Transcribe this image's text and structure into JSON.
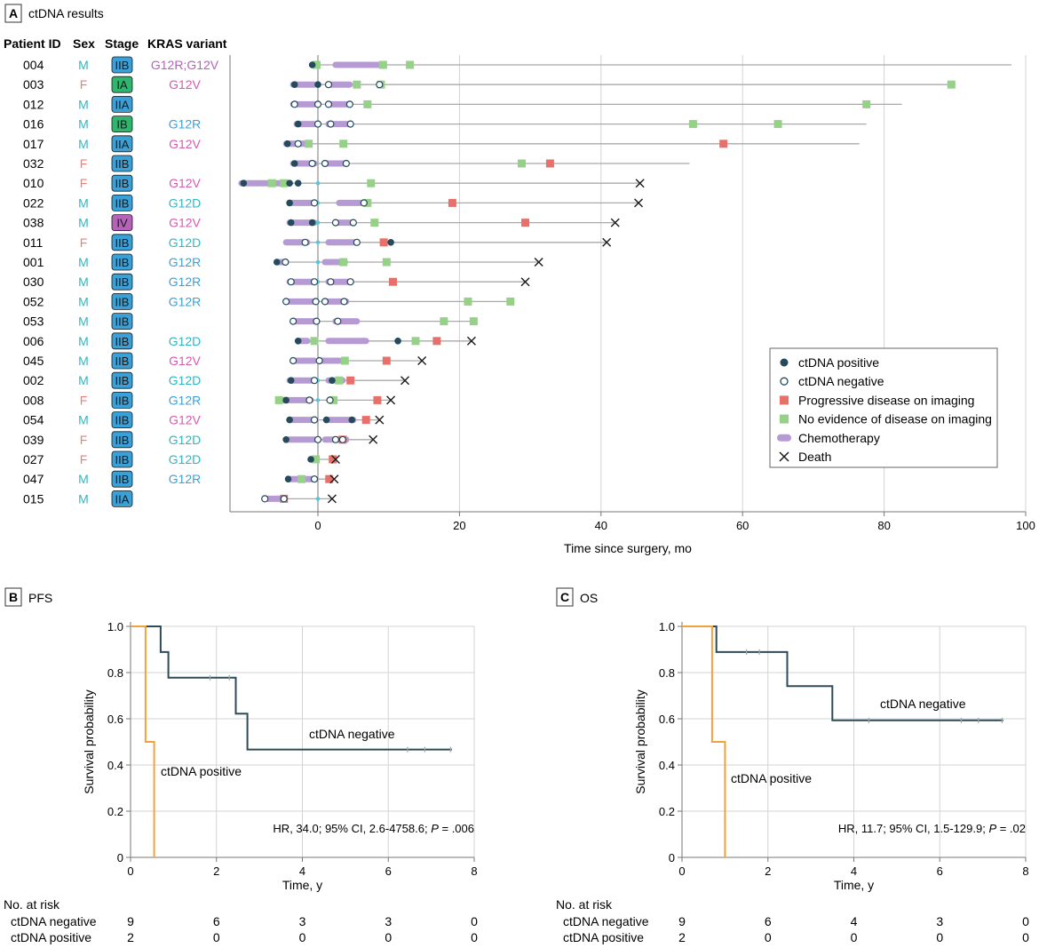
{
  "colors": {
    "pos": "#244a5c",
    "pfs_neg_line": "#2f4b57",
    "pd": "#e8706a",
    "ned": "#95d186",
    "chemo": "#b59ad4",
    "line": "#a9a9a9",
    "grid": "#d3d3d3",
    "orange": "#f2a23b",
    "cyan": "#56c6d9",
    "sexM": "#2fb6c1",
    "sexF": "#ef7e72",
    "stageIIB": "#3aa0d8",
    "stageIIA": "#3aa0d8",
    "stageIA": "#2eb66e",
    "stageIB": "#2eb66e",
    "stageIV": "#b463b8",
    "kras_G12V": "#d65ab0",
    "kras_G12R": "#3aa0d8",
    "kras_G12D": "#2fb6c1",
    "kras_G12R_G12V": "#b463b8"
  },
  "panelA": {
    "letter": "A",
    "title": "ctDNA results",
    "headers": {
      "patient": "Patient ID",
      "sex": "Sex",
      "stage": "Stage",
      "kras": "KRAS variant"
    },
    "xlabel": "Time since surgery, mo",
    "xticks": [
      0,
      20,
      40,
      60,
      80,
      100
    ],
    "xlim": [
      -11,
      100
    ],
    "legend": [
      {
        "key": "pos",
        "label": "ctDNA positive"
      },
      {
        "key": "neg",
        "label": "ctDNA negative"
      },
      {
        "key": "pd",
        "label": "Progressive disease on imaging"
      },
      {
        "key": "ned",
        "label": "No evidence of disease on imaging"
      },
      {
        "key": "chemo",
        "label": "Chemotherapy"
      },
      {
        "key": "death",
        "label": "Death"
      }
    ],
    "patients": [
      {
        "id": "004",
        "sex": "M",
        "stage": "IIB",
        "kras": "G12R;G12V",
        "kras_key": "G12R_G12V",
        "start": -1,
        "end": 98,
        "chemo": [
          [
            2.5,
            9
          ]
        ],
        "pos": [
          -0.8
        ],
        "neg": [],
        "ned": [
          -0.2,
          9.2,
          13
        ],
        "pd": [],
        "death": null
      },
      {
        "id": "003",
        "sex": "F",
        "stage": "IA",
        "kras": "G12V",
        "kras_key": "G12V",
        "start": -3.5,
        "end": 89.5,
        "chemo": [
          [
            -3.5,
            -0.5
          ],
          [
            1.5,
            4.5
          ]
        ],
        "pos": [
          -3.3,
          0
        ],
        "neg": [
          1.5,
          8.7
        ],
        "ned": [
          5.5,
          8.9,
          89.5
        ],
        "pd": [],
        "death": null
      },
      {
        "id": "012",
        "sex": "M",
        "stage": "IIA",
        "kras": "",
        "kras_key": "",
        "start": -3.5,
        "end": 82.5,
        "chemo": [
          [
            -3.5,
            -0.5
          ],
          [
            1.5,
            4.5
          ]
        ],
        "pos": [],
        "neg": [
          -3.3,
          0,
          1.5,
          4.5
        ],
        "ned": [
          7,
          77.5
        ],
        "pd": [],
        "death": null
      },
      {
        "id": "016",
        "sex": "M",
        "stage": "IB",
        "kras": "G12R",
        "kras_key": "G12R",
        "start": -3,
        "end": 77.5,
        "chemo": [
          [
            -3,
            -0.5
          ],
          [
            1.5,
            4.5
          ]
        ],
        "pos": [
          -2.8
        ],
        "neg": [
          0,
          1.8,
          4.6
        ],
        "ned": [
          53,
          65
        ],
        "pd": [],
        "death": null
      },
      {
        "id": "017",
        "sex": "M",
        "stage": "IIA",
        "kras": "G12V",
        "kras_key": "G12V",
        "start": -4.5,
        "end": 76.5,
        "chemo": [
          [
            -4.5,
            -1.5
          ]
        ],
        "pos": [
          -4.3
        ],
        "neg": [
          -2.8
        ],
        "ned": [
          -1.3,
          3.6
        ],
        "pd": [
          57.3
        ],
        "death": null
      },
      {
        "id": "032",
        "sex": "F",
        "stage": "IIB",
        "kras": "",
        "kras_key": "",
        "start": -3.5,
        "end": 52.5,
        "chemo": [
          [
            -3.5,
            -0.5
          ],
          [
            1,
            4
          ]
        ],
        "pos": [
          -3.3
        ],
        "neg": [
          -0.8,
          1,
          4
        ],
        "ned": [
          28.8
        ],
        "pd": [
          32.8
        ],
        "death": null
      },
      {
        "id": "010",
        "sex": "F",
        "stage": "IIB",
        "kras": "G12V",
        "kras_key": "G12V",
        "start": -11,
        "end": 45.5,
        "chemo": [
          [
            -10.8,
            -4.5
          ]
        ],
        "pos": [
          -10.5,
          -4,
          -2.8
        ],
        "neg": [],
        "ned": [
          -6.5,
          -4.8,
          7.5
        ],
        "pd": [],
        "death": 45.5,
        "cyan": [
          0
        ]
      },
      {
        "id": "022",
        "sex": "M",
        "stage": "IIB",
        "kras": "G12D",
        "kras_key": "G12D",
        "start": -4,
        "end": 45.3,
        "chemo": [
          [
            -4,
            -0.5
          ],
          [
            3,
            7
          ]
        ],
        "pos": [
          -4
        ],
        "neg": [
          -0.5,
          6.5
        ],
        "ned": [
          7
        ],
        "pd": [
          19
        ],
        "death": 45.3,
        "cyan": [
          0
        ]
      },
      {
        "id": "038",
        "sex": "M",
        "stage": "IV",
        "kras": "G12V",
        "kras_key": "G12V",
        "start": -4,
        "end": 42,
        "chemo": [
          [
            -4,
            -0.5
          ],
          [
            2.5,
            5
          ]
        ],
        "pos": [
          -3.8,
          -0.8
        ],
        "neg": [
          2.5,
          5
        ],
        "ned": [
          8
        ],
        "pd": [
          29.3
        ],
        "death": 42,
        "cyan": [
          0
        ]
      },
      {
        "id": "011",
        "sex": "F",
        "stage": "IIB",
        "kras": "G12D",
        "kras_key": "G12D",
        "start": -4.5,
        "end": 40.8,
        "chemo": [
          [
            -4.5,
            -1.5
          ],
          [
            1.5,
            5.5
          ]
        ],
        "pos": [
          10.3
        ],
        "neg": [
          -1.8,
          5.5
        ],
        "ned": [],
        "pd": [
          9.3
        ],
        "death": 40.8,
        "cyan": [
          0
        ]
      },
      {
        "id": "001",
        "sex": "M",
        "stage": "IIB",
        "kras": "G12R",
        "kras_key": "G12R",
        "start": -6,
        "end": 31.2,
        "chemo": [
          [
            -5.5,
            -4.5
          ],
          [
            1,
            3.8
          ]
        ],
        "pos": [
          -5.8
        ],
        "neg": [
          -4.6
        ],
        "ned": [
          3.6,
          9.7
        ],
        "pd": [],
        "death": 31.2,
        "cyan": [
          0
        ]
      },
      {
        "id": "030",
        "sex": "M",
        "stage": "IIB",
        "kras": "G12R",
        "kras_key": "G12R",
        "start": -4,
        "end": 29.3,
        "chemo": [
          [
            -4,
            -0.5
          ],
          [
            1.5,
            4.5
          ]
        ],
        "pos": [],
        "neg": [
          -3.8,
          -0.5,
          1.8,
          4.6
        ],
        "ned": [],
        "pd": [
          10.6
        ],
        "death": 29.3,
        "cyan": [
          0
        ]
      },
      {
        "id": "052",
        "sex": "M",
        "stage": "IIB",
        "kras": "G12R",
        "kras_key": "G12R",
        "start": -4.5,
        "end": 27.5,
        "chemo": [
          [
            -4.5,
            -0.5
          ],
          [
            1,
            4
          ]
        ],
        "pos": [],
        "neg": [
          -4.5,
          -0.3,
          1,
          3.7
        ],
        "ned": [
          21.2,
          27.2
        ],
        "pd": [],
        "death": null
      },
      {
        "id": "053",
        "sex": "M",
        "stage": "IIB",
        "kras": "",
        "kras_key": "",
        "start": -3.5,
        "end": 22.5,
        "chemo": [
          [
            -3.5,
            -0.5
          ],
          [
            2.5,
            5.5
          ]
        ],
        "pos": [],
        "neg": [
          -3.5,
          -0.2,
          2.8
        ],
        "ned": [
          17.8,
          22
        ],
        "pd": [],
        "death": null
      },
      {
        "id": "006",
        "sex": "M",
        "stage": "IIB",
        "kras": "G12D",
        "kras_key": "G12D",
        "start": -3,
        "end": 21.7,
        "chemo": [
          [
            -2.5,
            -1.5
          ],
          [
            1.5,
            6.8
          ]
        ],
        "pos": [
          -2.8,
          11.3
        ],
        "neg": [],
        "ned": [
          -0.5,
          13.8
        ],
        "pd": [
          16.8
        ],
        "death": 21.7
      },
      {
        "id": "045",
        "sex": "M",
        "stage": "IIB",
        "kras": "G12V",
        "kras_key": "G12V",
        "start": -3.5,
        "end": 14.7,
        "chemo": [
          [
            -3.5,
            -0.5
          ],
          [
            0.5,
            3
          ]
        ],
        "pos": [],
        "neg": [
          -3.5,
          0.2
        ],
        "ned": [
          3.8
        ],
        "pd": [
          9.7
        ],
        "death": 14.7
      },
      {
        "id": "002",
        "sex": "M",
        "stage": "IIB",
        "kras": "G12D",
        "kras_key": "G12D",
        "start": -4,
        "end": 12.3,
        "chemo": [
          [
            -4,
            -0.5
          ],
          [
            1.5,
            3.5
          ]
        ],
        "pos": [
          -3.8,
          2
        ],
        "neg": [
          -0.5
        ],
        "ned": [
          3
        ],
        "pd": [
          4.6
        ],
        "death": 12.3,
        "cyan": [
          0
        ]
      },
      {
        "id": "008",
        "sex": "F",
        "stage": "IIB",
        "kras": "G12R",
        "kras_key": "G12R",
        "start": -6,
        "end": 10.3,
        "chemo": [
          [
            -5,
            -1
          ]
        ],
        "pos": [
          -4.5
        ],
        "neg": [
          -1.2,
          1.7
        ],
        "ned": [
          -5.5,
          2.2
        ],
        "pd": [
          8.4
        ],
        "death": 10.3,
        "cyan": [
          0
        ]
      },
      {
        "id": "054",
        "sex": "M",
        "stage": "IIB",
        "kras": "G12V",
        "kras_key": "G12V",
        "start": -4,
        "end": 8.7,
        "chemo": [
          [
            -4,
            -0.5
          ],
          [
            1.5,
            5
          ]
        ],
        "pos": [
          -4,
          1.2,
          4.8
        ],
        "neg": [
          -0.5
        ],
        "ned": [],
        "pd": [
          6.8
        ],
        "death": 8.7
      },
      {
        "id": "039",
        "sex": "F",
        "stage": "IIB",
        "kras": "G12D",
        "kras_key": "G12D",
        "start": -4.5,
        "end": 7.8,
        "chemo": [
          [
            -4.5,
            -0.5
          ],
          [
            1,
            4
          ]
        ],
        "pos": [
          -4.5
        ],
        "neg": [
          0,
          2.5,
          3.5
        ],
        "ned": [],
        "pd": [
          3.5
        ],
        "death": 7.8
      },
      {
        "id": "027",
        "sex": "F",
        "stage": "IIB",
        "kras": "G12D",
        "kras_key": "G12D",
        "start": -1.2,
        "end": 2.5,
        "chemo": [],
        "pos": [
          -1
        ],
        "neg": [],
        "ned": [
          -0.3
        ],
        "pd": [
          2.1
        ],
        "death": 2.5
      },
      {
        "id": "047",
        "sex": "M",
        "stage": "IIB",
        "kras": "G12R",
        "kras_key": "G12R",
        "start": -4.5,
        "end": 2.3,
        "chemo": [
          [
            -4,
            -0.5
          ]
        ],
        "pos": [
          -4.2
        ],
        "neg": [
          -0.5
        ],
        "ned": [
          -2.3
        ],
        "pd": [
          1.6
        ],
        "death": 2.3
      },
      {
        "id": "015",
        "sex": "M",
        "stage": "IIA",
        "kras": "",
        "kras_key": "",
        "start": -8,
        "end": 2,
        "chemo": [
          [
            -7.5,
            -5
          ]
        ],
        "pos": [],
        "neg": [
          -7.5,
          -4.8
        ],
        "ned": [],
        "pd": [
          -4.8
        ],
        "death": 2,
        "cyan": [
          0
        ]
      }
    ]
  },
  "chart_data": [
    {
      "type": "line",
      "panel": "B",
      "title": "PFS",
      "xlabel": "Time, y",
      "ylabel": "Survival probability",
      "xlim": [
        0,
        8
      ],
      "ylim": [
        0,
        1
      ],
      "xticks": [
        0,
        2,
        4,
        6,
        8
      ],
      "yticks": [
        "0",
        "0.2",
        "0.4",
        "0.6",
        "0.8",
        "1.0"
      ],
      "series": [
        {
          "name": "ctDNA negative",
          "x": [
            0,
            0.7,
            0.7,
            0.88,
            0.88,
            2.45,
            2.45,
            2.72,
            2.72,
            7.48
          ],
          "y": [
            1.0,
            1.0,
            0.889,
            0.889,
            0.778,
            0.778,
            0.622,
            0.622,
            0.467,
            0.467
          ],
          "censor": [
            [
              1.85,
              0.778
            ],
            [
              2.3,
              0.778
            ],
            [
              6.45,
              0.467
            ],
            [
              6.85,
              0.467
            ],
            [
              7.45,
              0.467
            ]
          ]
        },
        {
          "name": "ctDNA positive",
          "x": [
            0,
            0.35,
            0.35,
            0.55,
            0.55
          ],
          "y": [
            1.0,
            1.0,
            0.5,
            0.5,
            0.0
          ],
          "censor": []
        }
      ],
      "annotations": [
        "ctDNA negative",
        "ctDNA positive"
      ],
      "hr_text": "HR, 34.0; 95% CI, 2.6-4758.6; ",
      "p_label": "P",
      "p_text": " = .006",
      "risk_table": {
        "header": "No. at risk",
        "rows": [
          {
            "label": "ctDNA negative",
            "values": [
              "9",
              "6",
              "3",
              "3",
              "0"
            ]
          },
          {
            "label": "ctDNA positive",
            "values": [
              "2",
              "0",
              "0",
              "0",
              "0"
            ]
          }
        ]
      }
    },
    {
      "type": "line",
      "panel": "C",
      "title": "OS",
      "xlabel": "Time, y",
      "ylabel": "Survival probability",
      "xlim": [
        0,
        8
      ],
      "ylim": [
        0,
        1
      ],
      "xticks": [
        0,
        2,
        4,
        6,
        8
      ],
      "yticks": [
        "0",
        "0.2",
        "0.4",
        "0.6",
        "0.8",
        "1.0"
      ],
      "series": [
        {
          "name": "ctDNA negative",
          "x": [
            0,
            0.8,
            0.8,
            2.45,
            2.45,
            3.5,
            3.5,
            7.48
          ],
          "y": [
            1.0,
            1.0,
            0.889,
            0.889,
            0.741,
            0.741,
            0.593,
            0.593
          ],
          "censor": [
            [
              1.5,
              0.889
            ],
            [
              1.8,
              0.889
            ],
            [
              4.35,
              0.593
            ],
            [
              6.5,
              0.593
            ],
            [
              6.9,
              0.593
            ],
            [
              7.45,
              0.593
            ]
          ]
        },
        {
          "name": "ctDNA positive",
          "x": [
            0,
            0.7,
            0.7,
            1.0,
            1.0
          ],
          "y": [
            1.0,
            1.0,
            0.5,
            0.5,
            0.0
          ],
          "censor": []
        }
      ],
      "annotations": [
        "ctDNA negative",
        "ctDNA positive"
      ],
      "hr_text": "HR, 11.7; 95% CI, 1.5-129.9; ",
      "p_label": "P",
      "p_text": " = .02",
      "risk_table": {
        "header": "No. at risk",
        "rows": [
          {
            "label": "ctDNA negative",
            "values": [
              "9",
              "6",
              "4",
              "3",
              "0"
            ]
          },
          {
            "label": "ctDNA positive",
            "values": [
              "2",
              "0",
              "0",
              "0",
              "0"
            ]
          }
        ]
      }
    }
  ]
}
